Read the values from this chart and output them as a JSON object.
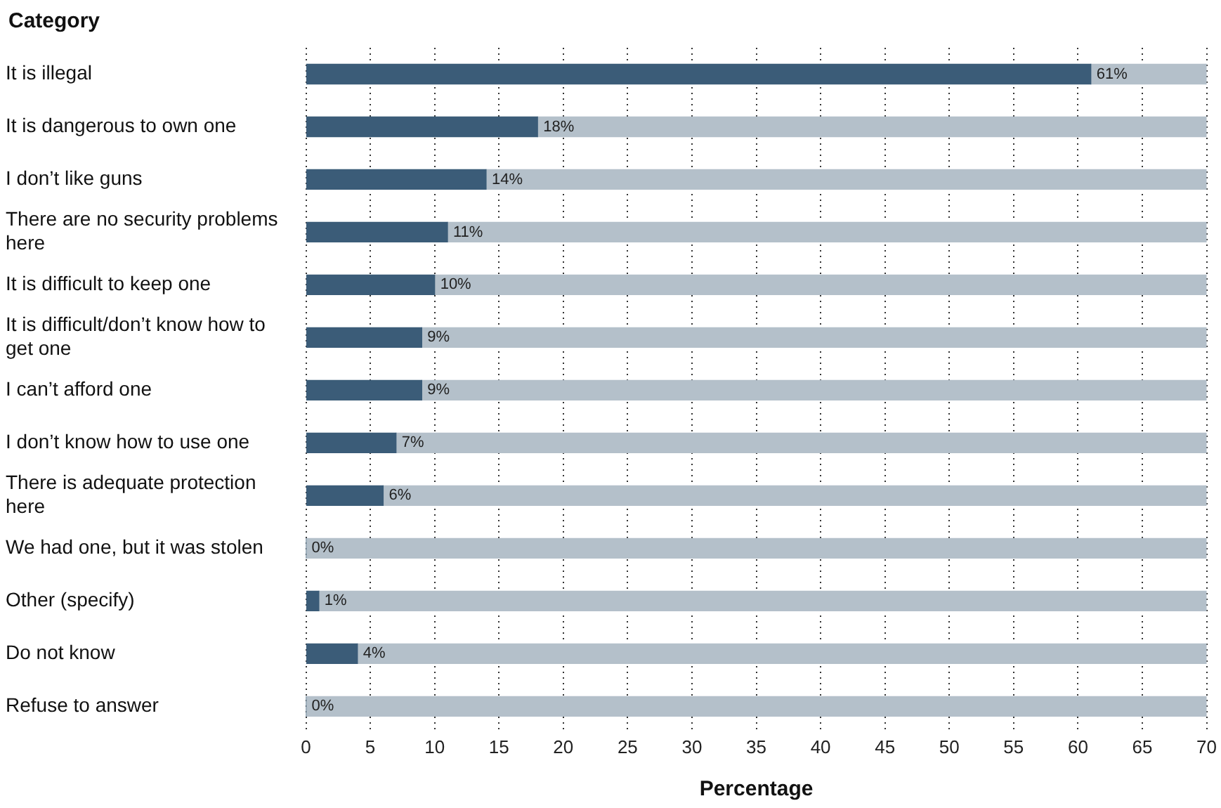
{
  "chart_data": {
    "type": "bar",
    "orientation": "horizontal",
    "stacked": true,
    "xlabel": "Percentage",
    "ylabel": "Category",
    "categories": [
      "It is illegal",
      "It is dangerous to own one",
      "I don’t like guns",
      "There are no security problems here",
      "It is difficult to keep one",
      "It is difficult/don’t know how to get one",
      "I can’t afford one",
      "I don’t know how to use one",
      "There is adequate protection here",
      "We had one, but it was stolen",
      "Other (specify)",
      "Do not know",
      "Refuse to answer"
    ],
    "series": [
      {
        "color": "#3b5c78",
        "values": [
          61,
          18,
          14,
          11,
          10,
          9,
          9,
          7,
          6,
          0,
          1,
          4,
          0
        ],
        "value_labels": [
          "61%",
          "18%",
          "14%",
          "11%",
          "10%",
          "9%",
          "9%",
          "7%",
          "6%",
          "0%",
          "1%",
          "4%",
          "0%"
        ]
      },
      {
        "color": "#b4c0ca",
        "values": [
          9,
          52,
          56,
          59,
          60,
          61,
          61,
          63,
          64,
          70,
          69,
          66,
          70
        ]
      }
    ],
    "xlim": [
      0,
      70
    ],
    "xticks": [
      0,
      5,
      10,
      15,
      20,
      25,
      30,
      35,
      40,
      45,
      50,
      55,
      60,
      65,
      70
    ],
    "grid": "x",
    "legend": false
  }
}
